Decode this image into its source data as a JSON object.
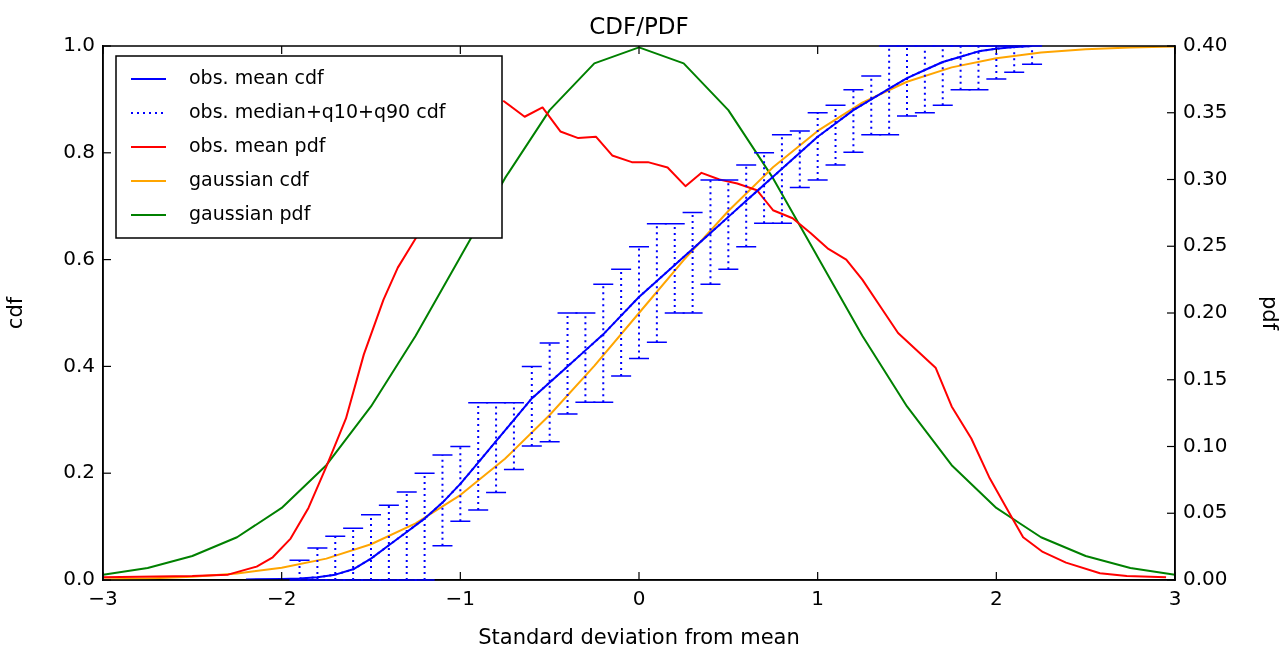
{
  "chart_data": {
    "type": "line",
    "title": "CDF/PDF",
    "xlabel": "Standard deviation from mean",
    "ylabel": "cdf",
    "y2label": "pdf",
    "legend": "top left",
    "marker": "none",
    "xlim": [
      -3,
      3
    ],
    "xticks": [
      {
        "value": -3,
        "label": "−3"
      },
      {
        "value": -2,
        "label": "−2"
      },
      {
        "value": -1,
        "label": "−1"
      },
      {
        "value": 0,
        "label": "0"
      },
      {
        "value": 1,
        "label": "1"
      },
      {
        "value": 2,
        "label": "2"
      },
      {
        "value": 3,
        "label": "3"
      }
    ],
    "ylim": [
      0,
      1
    ],
    "yticks": [
      {
        "value": 0,
        "label": "0.0"
      },
      {
        "value": 0.2,
        "label": "0.2"
      },
      {
        "value": 0.4,
        "label": "0.4"
      },
      {
        "value": 0.6,
        "label": "0.6"
      },
      {
        "value": 0.8,
        "label": "0.8"
      },
      {
        "value": 1,
        "label": "1.0"
      }
    ],
    "y2lim": [
      0,
      0.4
    ],
    "y2ticks": [
      {
        "value": 0,
        "label": "0.00"
      },
      {
        "value": 0.05,
        "label": "0.05"
      },
      {
        "value": 0.1,
        "label": "0.10"
      },
      {
        "value": 0.15,
        "label": "0.15"
      },
      {
        "value": 0.2,
        "label": "0.20"
      },
      {
        "value": 0.25,
        "label": "0.25"
      },
      {
        "value": 0.3,
        "label": "0.30"
      },
      {
        "value": 0.35,
        "label": "0.35"
      },
      {
        "value": 0.4,
        "label": "0.40"
      }
    ],
    "series": [
      {
        "name": "obs. mean cdf",
        "color": "#0000ff",
        "line_style": "solid",
        "x": [
          -2.2,
          -2.0,
          -1.9,
          -1.8,
          -1.7,
          -1.6,
          -1.5,
          -1.4,
          -1.3,
          -1.2,
          -1.1,
          -1.0,
          -0.9,
          -0.8,
          -0.7,
          -0.6,
          -0.5,
          -0.4,
          -0.3,
          -0.2,
          -0.1,
          0,
          0.1,
          0.2,
          0.3,
          0.4,
          0.5,
          0.6,
          0.7,
          0.8,
          0.9,
          1.0,
          1.1,
          1.2,
          1.3,
          1.4,
          1.5,
          1.6,
          1.7,
          1.8,
          1.9,
          2.0,
          2.1,
          2.2
        ],
        "values": [
          0.001,
          0.002,
          0.003,
          0.005,
          0.01,
          0.02,
          0.04,
          0.065,
          0.09,
          0.115,
          0.145,
          0.18,
          0.22,
          0.26,
          0.3,
          0.34,
          0.37,
          0.4,
          0.43,
          0.46,
          0.495,
          0.53,
          0.56,
          0.59,
          0.62,
          0.65,
          0.68,
          0.71,
          0.74,
          0.77,
          0.8,
          0.83,
          0.855,
          0.88,
          0.9,
          0.92,
          0.94,
          0.955,
          0.97,
          0.98,
          0.99,
          0.995,
          0.998,
          1.0
        ]
      },
      {
        "name": "obs. median+q10+q90 cdf",
        "color": "#0000ff",
        "line_style": "dotted",
        "x": [
          -1.9,
          -1.8,
          -1.7,
          -1.6,
          -1.5,
          -1.4,
          -1.3,
          -1.2,
          -1.1,
          -1.0,
          -0.9,
          -0.8,
          -0.7,
          -0.6,
          -0.5,
          -0.4,
          -0.3,
          -0.2,
          -0.1,
          0,
          0.1,
          0.2,
          0.3,
          0.4,
          0.5,
          0.6,
          0.7,
          0.8,
          0.9,
          1.0,
          1.1,
          1.2,
          1.3,
          1.4,
          1.5,
          1.6,
          1.7,
          1.8,
          1.9,
          2.0,
          2.1,
          2.2
        ],
        "values": [
          0.003,
          0.005,
          0.01,
          0.02,
          0.04,
          0.065,
          0.09,
          0.115,
          0.145,
          0.18,
          0.22,
          0.26,
          0.3,
          0.34,
          0.37,
          0.4,
          0.43,
          0.46,
          0.495,
          0.53,
          0.56,
          0.59,
          0.62,
          0.65,
          0.68,
          0.71,
          0.74,
          0.77,
          0.8,
          0.83,
          0.855,
          0.88,
          0.9,
          0.92,
          0.94,
          0.955,
          0.97,
          0.98,
          0.99,
          0.995,
          0.998,
          1.0
        ],
        "errors": [
          [
            0,
            0.037
          ],
          [
            0,
            0.06
          ],
          [
            0,
            0.082
          ],
          [
            0,
            0.097
          ],
          [
            0,
            0.122
          ],
          [
            0,
            0.14
          ],
          [
            0,
            0.165
          ],
          [
            0,
            0.2
          ],
          [
            0.064,
            0.234
          ],
          [
            0.11,
            0.25
          ],
          [
            0.131,
            0.332
          ],
          [
            0.164,
            0.332
          ],
          [
            0.207,
            0.332
          ],
          [
            0.251,
            0.4
          ],
          [
            0.259,
            0.444
          ],
          [
            0.311,
            0.5
          ],
          [
            0.333,
            0.5
          ],
          [
            0.333,
            0.554
          ],
          [
            0.382,
            0.582
          ],
          [
            0.415,
            0.624
          ],
          [
            0.445,
            0.667
          ],
          [
            0.5,
            0.667
          ],
          [
            0.5,
            0.688
          ],
          [
            0.554,
            0.749
          ],
          [
            0.582,
            0.749
          ],
          [
            0.624,
            0.777
          ],
          [
            0.668,
            0.8
          ],
          [
            0.668,
            0.834
          ],
          [
            0.735,
            0.841
          ],
          [
            0.749,
            0.875
          ],
          [
            0.777,
            0.889
          ],
          [
            0.801,
            0.918
          ],
          [
            0.834,
            0.944
          ],
          [
            0.834,
            1.0
          ],
          [
            0.869,
            1.0
          ],
          [
            0.875,
            1.0
          ],
          [
            0.889,
            1.0
          ],
          [
            0.918,
            1.0
          ],
          [
            0.918,
            1.0
          ],
          [
            0.938,
            1.0
          ],
          [
            0.951,
            1.0
          ],
          [
            0.966,
            1.0
          ]
        ]
      },
      {
        "name": "obs. mean pdf",
        "color": "#ff0000",
        "line_style": "solid",
        "axis": "y2",
        "x": [
          -3,
          -2.5,
          -2.3,
          -2.14,
          -2.05,
          -1.95,
          -1.85,
          -1.75,
          -1.64,
          -1.54,
          -1.43,
          -1.35,
          -1.24,
          -1.0,
          -0.76,
          -0.64,
          -0.54,
          -0.44,
          -0.34,
          -0.24,
          -0.15,
          -0.04,
          0.05,
          0.16,
          0.26,
          0.35,
          0.45,
          0.55,
          0.66,
          0.75,
          0.86,
          0.96,
          1.06,
          1.16,
          1.25,
          1.36,
          1.45,
          1.66,
          1.75,
          1.86,
          1.96,
          2.09,
          2.15,
          2.26,
          2.39,
          2.58,
          2.73,
          2.95
        ],
        "values": [
          0.002,
          0.003,
          0.004,
          0.01,
          0.017,
          0.031,
          0.054,
          0.085,
          0.121,
          0.169,
          0.21,
          0.234,
          0.258,
          null,
          0.359,
          0.347,
          0.354,
          0.336,
          0.331,
          0.332,
          0.318,
          0.313,
          0.313,
          0.309,
          0.295,
          0.305,
          0.3,
          0.297,
          0.292,
          0.277,
          0.271,
          0.26,
          0.248,
          0.24,
          0.225,
          0.203,
          0.185,
          0.159,
          0.13,
          0.106,
          0.077,
          0.046,
          0.032,
          0.021,
          0.013,
          0.005,
          0.003,
          0.002
        ]
      },
      {
        "name": "gaussian cdf",
        "color": "#ffa500",
        "line_style": "solid",
        "x": [
          -3,
          -2.75,
          -2.5,
          -2.25,
          -2,
          -1.75,
          -1.5,
          -1.25,
          -1,
          -0.75,
          -0.5,
          -0.25,
          0,
          0.25,
          0.5,
          0.75,
          1,
          1.25,
          1.5,
          1.75,
          2,
          2.25,
          2.5,
          2.75,
          3
        ],
        "values": [
          0.001,
          0.003,
          0.006,
          0.012,
          0.023,
          0.04,
          0.067,
          0.106,
          0.159,
          0.227,
          0.309,
          0.401,
          0.5,
          0.599,
          0.691,
          0.773,
          0.841,
          0.894,
          0.933,
          0.96,
          0.977,
          0.988,
          0.994,
          0.997,
          0.999
        ]
      },
      {
        "name": "gaussian pdf",
        "color": "#008000",
        "line_style": "solid",
        "axis": "y2",
        "x": [
          -3,
          -2.75,
          -2.5,
          -2.25,
          -2,
          -1.75,
          -1.5,
          -1.25,
          -1,
          -0.75,
          -0.5,
          -0.25,
          0,
          0.25,
          0.5,
          0.75,
          1,
          1.25,
          1.5,
          1.75,
          2,
          2.25,
          2.5,
          2.75,
          3
        ],
        "values": [
          0.004,
          0.009,
          0.018,
          0.032,
          0.054,
          0.086,
          0.13,
          0.183,
          0.242,
          0.301,
          0.352,
          0.387,
          0.399,
          0.387,
          0.352,
          0.301,
          0.242,
          0.183,
          0.13,
          0.086,
          0.054,
          0.032,
          0.018,
          0.009,
          0.004
        ]
      }
    ]
  }
}
